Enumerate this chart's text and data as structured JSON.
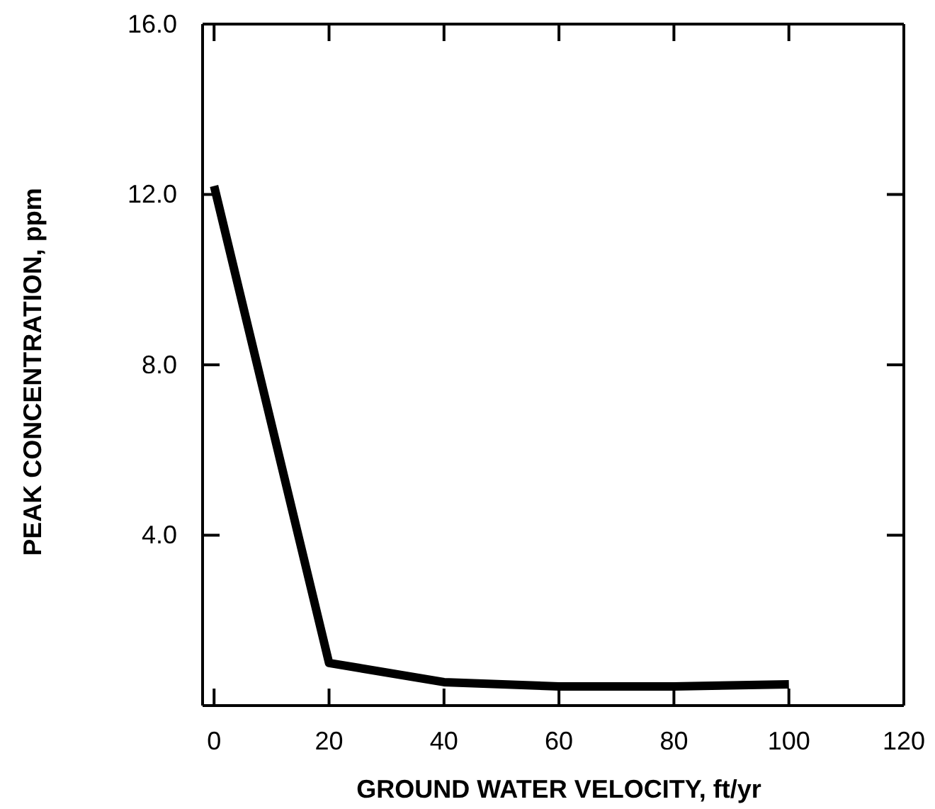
{
  "chart_data": {
    "type": "line",
    "xlabel": "GROUND WATER VELOCITY, ft/yr",
    "ylabel": "PEAK CONCENTRATION, ppm",
    "x": [
      0,
      20,
      40,
      60,
      80,
      100
    ],
    "series": [
      {
        "color": "#000000",
        "values": [
          12.2,
          1.0,
          0.55,
          0.45,
          0.45,
          0.5
        ]
      }
    ],
    "line_style": "solid",
    "xlim": [
      -2,
      120
    ],
    "ylim": [
      0,
      16
    ],
    "xticks": [
      0,
      20,
      40,
      60,
      80,
      100,
      120
    ],
    "yticks": [
      {
        "value": 4,
        "label": "4.0"
      },
      {
        "value": 8,
        "label": "8.0"
      },
      {
        "value": 12,
        "label": "12.0"
      },
      {
        "value": 16,
        "label": "16.0"
      }
    ]
  }
}
